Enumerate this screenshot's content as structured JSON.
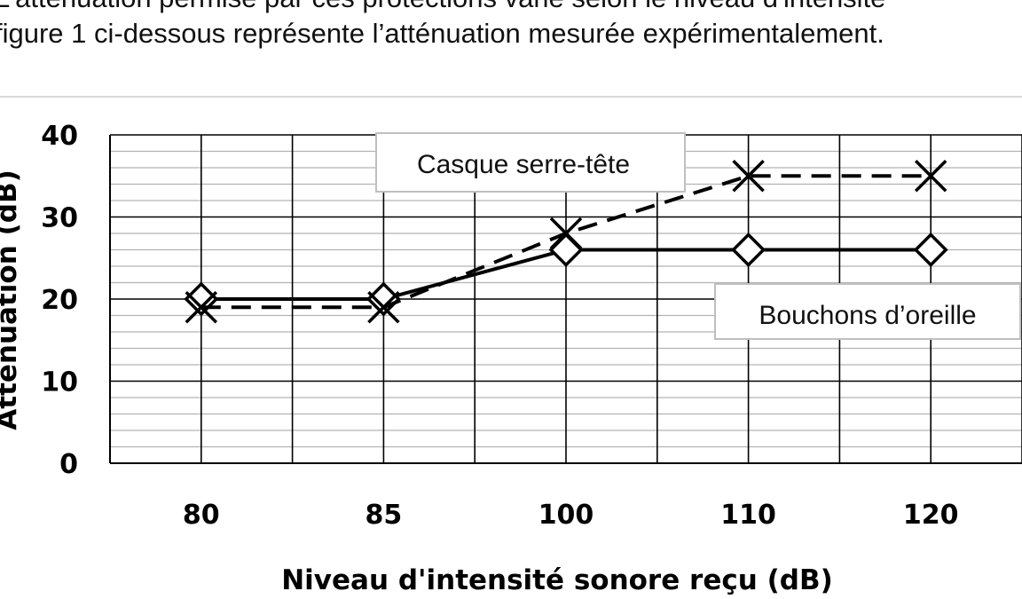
{
  "intro": {
    "line1": "L'atténuation permise par ces protections varie selon le niveau d'intensité",
    "line2": "figure 1 ci-dessous représente l’atténuation mesurée expérimentalement."
  },
  "chart_data": {
    "type": "line",
    "categories": [
      "80",
      "85",
      "100",
      "110",
      "120"
    ],
    "xlabel": "Niveau d'intensité sonore reçu (dB)",
    "ylabel": "Atténuation (dB)",
    "ylim": [
      0,
      40
    ],
    "yticks": [
      "0",
      "10",
      "20",
      "30",
      "40"
    ],
    "grid": true,
    "series": [
      {
        "name": "Bouchons d’oreille",
        "values": [
          20,
          20,
          26,
          26,
          26
        ],
        "marker": "diamond",
        "line": "solid",
        "color": "#000000"
      },
      {
        "name": "Casque serre-tête",
        "values": [
          19,
          19,
          28,
          35,
          35
        ],
        "marker": "x",
        "line": "dashed",
        "color": "#000000"
      }
    ]
  }
}
